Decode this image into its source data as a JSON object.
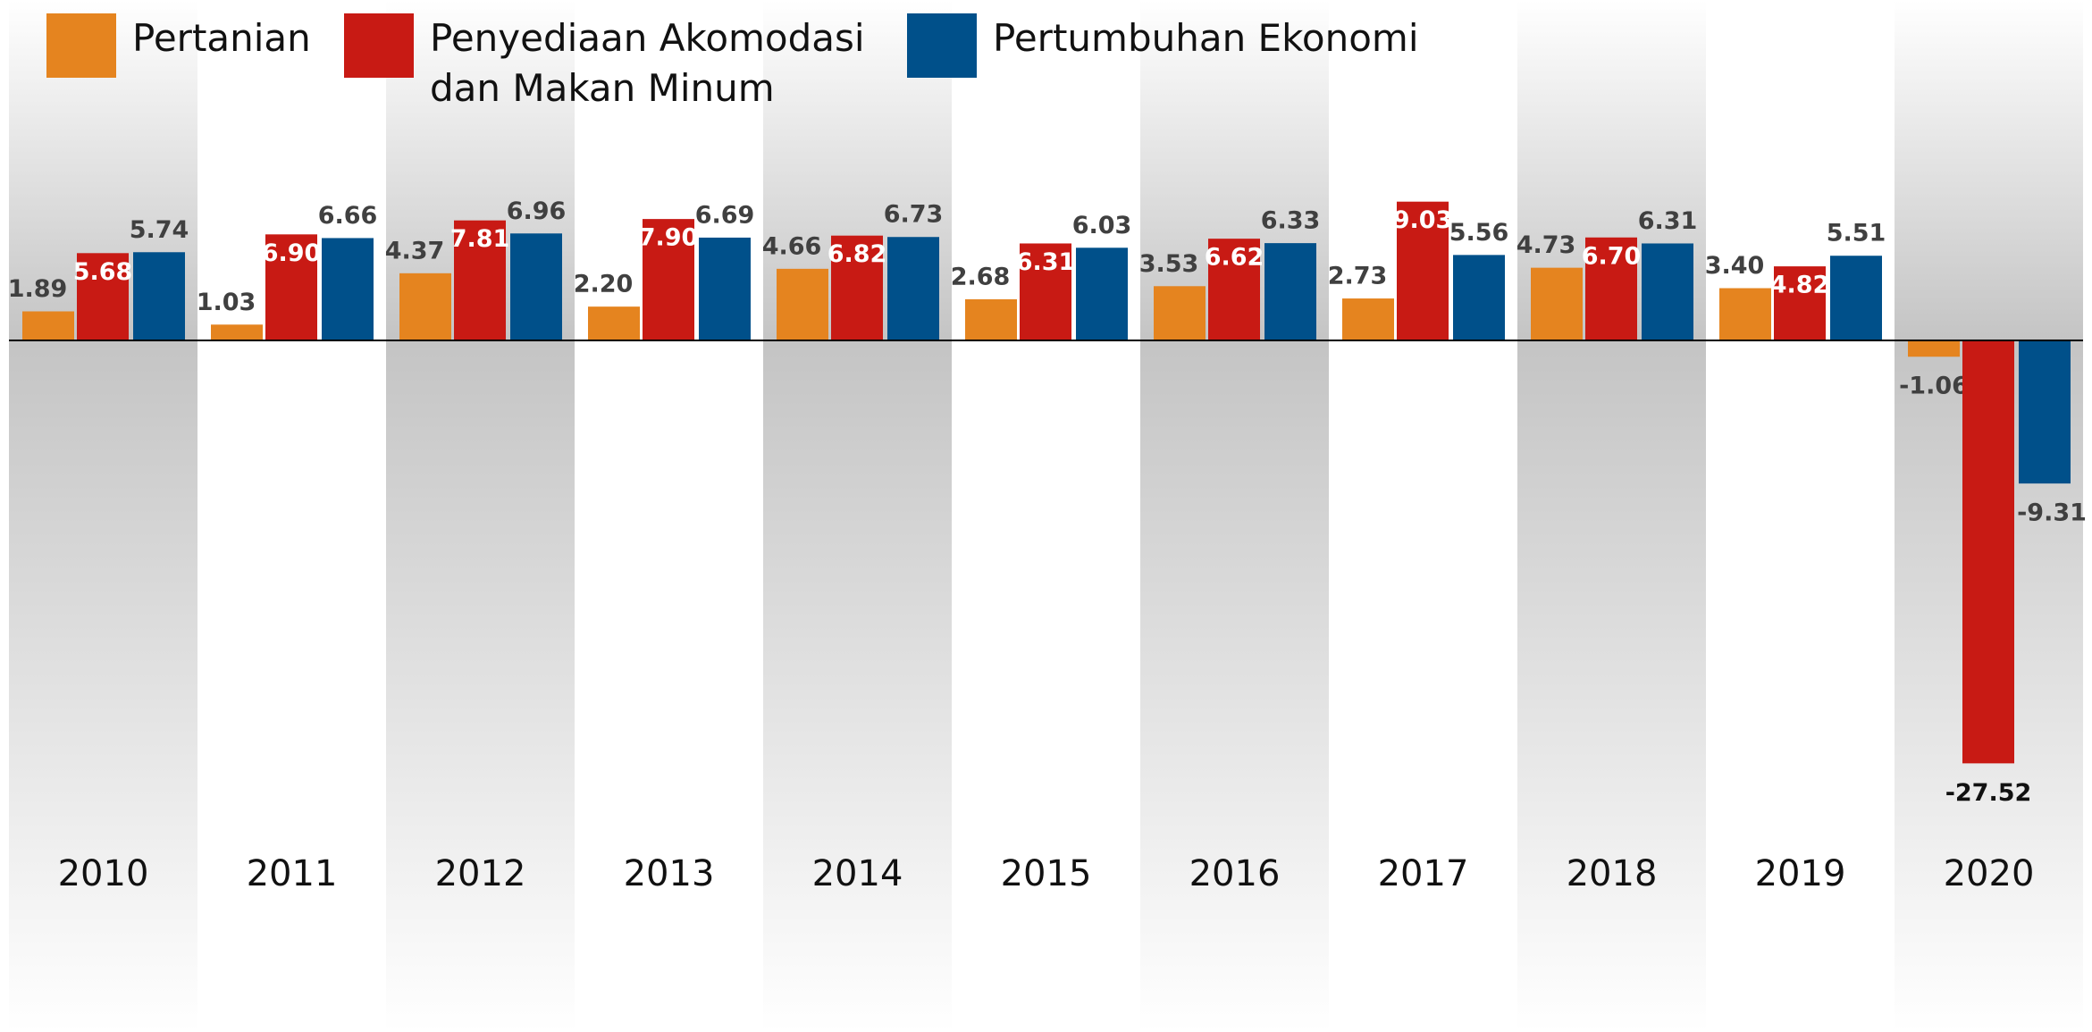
{
  "chart_data": {
    "type": "bar",
    "categories": [
      "2010",
      "2011",
      "2012",
      "2013",
      "2014",
      "2015",
      "2016",
      "2017",
      "2018",
      "2019",
      "2020"
    ],
    "series": [
      {
        "name": "Pertanian",
        "color": "#e5841f",
        "values": [
          1.89,
          1.03,
          4.37,
          2.2,
          4.66,
          2.68,
          3.53,
          2.73,
          4.73,
          3.4,
          -1.06
        ],
        "value_labels": [
          "1.89",
          "1.03",
          "4.37",
          "2.20",
          "4.66",
          "2.68",
          "3.53",
          "2.73",
          "4.73",
          "3.40",
          "-1.06"
        ]
      },
      {
        "name": "Penyediaan Akomodasi dan Makan Minum",
        "color": "#c81a14",
        "values": [
          5.68,
          6.9,
          7.81,
          7.9,
          6.82,
          6.31,
          6.62,
          9.03,
          6.7,
          4.82,
          -27.52
        ],
        "value_labels": [
          "5.68",
          "6.90",
          "7.81",
          "7.90",
          "6.82",
          "6.31",
          "6.62",
          "9.03",
          "6.70",
          "4.82",
          "-27.52"
        ]
      },
      {
        "name": "Pertumbuhan Ekonomi",
        "color": "#00508a",
        "values": [
          5.74,
          6.66,
          6.96,
          6.69,
          6.73,
          6.03,
          6.33,
          5.56,
          6.31,
          5.51,
          -9.31
        ],
        "value_labels": [
          "5.74",
          "6.66",
          "6.96",
          "6.69",
          "6.73",
          "6.03",
          "6.33",
          "5.56",
          "6.31",
          "5.51",
          "-9.31"
        ]
      }
    ]
  }
}
